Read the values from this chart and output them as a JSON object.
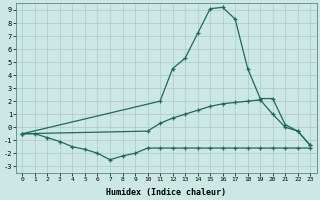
{
  "xlabel": "Humidex (Indice chaleur)",
  "bg_color": "#cce8e4",
  "grid_color": "#b0c8c4",
  "line_color": "#1a6b5a",
  "xlim": [
    -0.5,
    23.5
  ],
  "ylim": [
    -3.5,
    9.5
  ],
  "xticks": [
    0,
    1,
    2,
    3,
    4,
    5,
    6,
    7,
    8,
    9,
    10,
    11,
    12,
    13,
    14,
    15,
    16,
    17,
    18,
    19,
    20,
    21,
    22,
    23
  ],
  "yticks": [
    -3,
    -2,
    -1,
    0,
    1,
    2,
    3,
    4,
    5,
    6,
    7,
    8,
    9
  ],
  "line_main_x": [
    0,
    11,
    12,
    13,
    14,
    15,
    16,
    17,
    18,
    19,
    20,
    21,
    22,
    23
  ],
  "line_main_y": [
    -0.5,
    2.0,
    4.5,
    5.3,
    7.2,
    9.1,
    9.2,
    8.3,
    4.5,
    2.2,
    2.2,
    0.2,
    -0.3,
    -1.4
  ],
  "line_mid_x": [
    0,
    10,
    11,
    12,
    13,
    14,
    15,
    16,
    17,
    18,
    19,
    20,
    21,
    22,
    23
  ],
  "line_mid_y": [
    -0.5,
    -0.3,
    0.3,
    0.7,
    1.0,
    1.3,
    1.6,
    1.8,
    1.9,
    2.0,
    2.1,
    1.0,
    0.0,
    -0.3,
    -1.4
  ],
  "line_bot_x": [
    0,
    1,
    2,
    3,
    4,
    5,
    6,
    7,
    8,
    9,
    10,
    11,
    12,
    13,
    14,
    15,
    16,
    17,
    18,
    19,
    20,
    21,
    22,
    23
  ],
  "line_bot_y": [
    -0.5,
    -0.5,
    -0.8,
    -1.1,
    -1.5,
    -1.7,
    -2.0,
    -2.5,
    -2.2,
    -2.0,
    -1.6,
    -1.6,
    -1.6,
    -1.6,
    -1.6,
    -1.6,
    -1.6,
    -1.6,
    -1.6,
    -1.6,
    -1.6,
    -1.6,
    -1.6,
    -1.6
  ]
}
